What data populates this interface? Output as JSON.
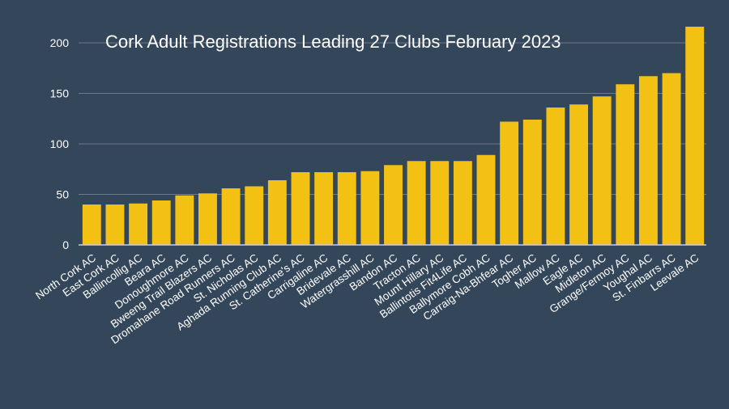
{
  "colors": {
    "background": "#34465a",
    "bar": "#f2c114"
  },
  "chart_data": {
    "type": "bar",
    "title": "Cork Adult Registrations Leading 27 Clubs February 2023",
    "xlabel": "",
    "ylabel": "",
    "ylim": [
      0,
      220
    ],
    "yticks": [
      0,
      50,
      100,
      150,
      200
    ],
    "grid": true,
    "legend": "none",
    "categories": [
      "North Cork AC",
      "East Cork AC",
      "Ballincollig AC",
      "Beara AC",
      "Donoughmore AC",
      "Bweeng Trail Blazers AC",
      "Dromahane Road Runners AC",
      "St. Nicholas AC",
      "Aghada Running Club AC",
      "St. Catherine's AC",
      "Carrigaline AC",
      "Bridevale AC",
      "Watergrasshill AC",
      "Bandon AC",
      "Tracton AC",
      "Mount Hillary AC",
      "Ballintotis Fit4Life AC",
      "Ballymore Cobh AC",
      "Carraig-Na-Bhfear AC",
      "Togher AC",
      "Mallow AC",
      "Eagle AC",
      "Midleton AC",
      "Grange/Fermoy AC",
      "Youghal AC",
      "St. Finbarrs AC",
      "Leevale AC"
    ],
    "values": [
      40,
      40,
      41,
      44,
      49,
      51,
      56,
      58,
      64,
      72,
      72,
      72,
      73,
      79,
      83,
      83,
      83,
      89,
      122,
      124,
      136,
      139,
      147,
      159,
      167,
      170,
      216
    ]
  }
}
